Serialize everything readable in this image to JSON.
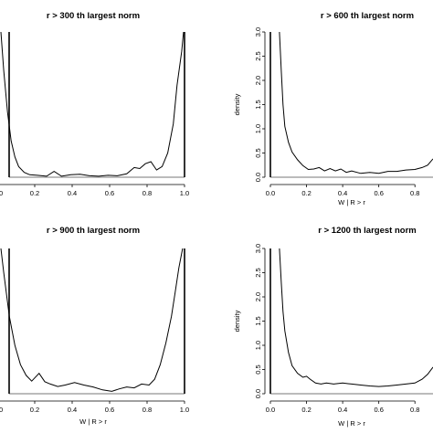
{
  "chart_data": [
    {
      "type": "line",
      "title": "r > 300 th largest norm",
      "xlabel": "",
      "ylabel": "",
      "xlim": [
        0.0,
        1.0
      ],
      "ylim": [
        0.0,
        3.0
      ],
      "x_ticks": [
        "0.0",
        "0.2",
        "0.4",
        "0.6",
        "0.8",
        "1.0"
      ],
      "y_ticks": [],
      "series": [
        {
          "x": [
            0.005,
            0.02,
            0.04,
            0.06,
            0.08,
            0.1,
            0.13,
            0.16,
            0.2,
            0.25,
            0.29,
            0.33,
            0.38,
            0.43,
            0.48,
            0.53,
            0.58,
            0.63,
            0.68,
            0.72,
            0.75,
            0.78,
            0.81,
            0.84,
            0.87,
            0.9,
            0.93,
            0.95,
            0.975,
            0.985
          ],
          "y": [
            3.0,
            2.2,
            1.35,
            0.75,
            0.42,
            0.22,
            0.1,
            0.05,
            0.04,
            0.02,
            0.12,
            0.02,
            0.05,
            0.06,
            0.03,
            0.02,
            0.04,
            0.03,
            0.07,
            0.2,
            0.18,
            0.28,
            0.32,
            0.15,
            0.22,
            0.5,
            1.1,
            1.9,
            2.6,
            3.0
          ]
        }
      ]
    },
    {
      "type": "line",
      "title": "r > 600 th largest norm",
      "xlabel": "W | R > r",
      "ylabel": "density",
      "xlim": [
        0.0,
        0.9
      ],
      "ylim": [
        0.0,
        3.0
      ],
      "x_ticks": [
        "0.0",
        "0.2",
        "0.4",
        "0.6",
        "0.8"
      ],
      "y_ticks": [
        "0.0",
        "0.5",
        "1.0",
        "1.5",
        "2.0",
        "2.5",
        "3.0"
      ],
      "series": [
        {
          "x": [
            0.05,
            0.06,
            0.07,
            0.08,
            0.1,
            0.12,
            0.15,
            0.18,
            0.21,
            0.24,
            0.27,
            0.3,
            0.33,
            0.36,
            0.39,
            0.42,
            0.45,
            0.5,
            0.55,
            0.6,
            0.65,
            0.7,
            0.75,
            0.8,
            0.84,
            0.87,
            0.9
          ],
          "y": [
            3.0,
            2.2,
            1.5,
            1.05,
            0.72,
            0.52,
            0.36,
            0.24,
            0.16,
            0.17,
            0.2,
            0.13,
            0.18,
            0.13,
            0.17,
            0.1,
            0.13,
            0.08,
            0.1,
            0.08,
            0.12,
            0.12,
            0.15,
            0.16,
            0.2,
            0.25,
            0.38
          ]
        }
      ]
    },
    {
      "type": "line",
      "title": "r > 900 th largest norm",
      "xlabel": "W | R > r",
      "ylabel": "",
      "xlim": [
        0.0,
        1.0
      ],
      "ylim": [
        0.0,
        3.0
      ],
      "x_ticks": [
        "0.0",
        "0.2",
        "0.4",
        "0.6",
        "0.8",
        "1.0"
      ],
      "y_ticks": [],
      "series": [
        {
          "x": [
            0.005,
            0.02,
            0.05,
            0.08,
            0.11,
            0.14,
            0.17,
            0.21,
            0.24,
            0.27,
            0.31,
            0.35,
            0.4,
            0.45,
            0.5,
            0.55,
            0.6,
            0.64,
            0.68,
            0.72,
            0.76,
            0.8,
            0.83,
            0.86,
            0.89,
            0.92,
            0.94,
            0.96,
            0.98
          ],
          "y": [
            3.0,
            2.5,
            1.6,
            1.0,
            0.6,
            0.38,
            0.26,
            0.42,
            0.25,
            0.2,
            0.15,
            0.18,
            0.23,
            0.18,
            0.14,
            0.08,
            0.05,
            0.1,
            0.14,
            0.12,
            0.2,
            0.18,
            0.3,
            0.6,
            1.05,
            1.6,
            2.1,
            2.6,
            3.0
          ]
        }
      ]
    },
    {
      "type": "line",
      "title": "r > 1200 th largest norm",
      "xlabel": "W | R > r",
      "ylabel": "density",
      "xlim": [
        0.0,
        0.9
      ],
      "ylim": [
        0.0,
        3.0
      ],
      "x_ticks": [
        "0.0",
        "0.2",
        "0.4",
        "0.6",
        "0.8"
      ],
      "y_ticks": [
        "0.0",
        "0.5",
        "1.0",
        "1.5",
        "2.0",
        "2.5",
        "3.0"
      ],
      "series": [
        {
          "x": [
            0.05,
            0.06,
            0.07,
            0.08,
            0.1,
            0.12,
            0.15,
            0.18,
            0.2,
            0.22,
            0.25,
            0.28,
            0.31,
            0.35,
            0.4,
            0.45,
            0.5,
            0.55,
            0.6,
            0.65,
            0.7,
            0.75,
            0.8,
            0.84,
            0.87,
            0.9
          ],
          "y": [
            3.0,
            2.3,
            1.7,
            1.3,
            0.85,
            0.58,
            0.42,
            0.34,
            0.36,
            0.3,
            0.22,
            0.2,
            0.22,
            0.2,
            0.22,
            0.2,
            0.18,
            0.16,
            0.15,
            0.16,
            0.18,
            0.2,
            0.22,
            0.3,
            0.4,
            0.55
          ]
        }
      ]
    }
  ]
}
